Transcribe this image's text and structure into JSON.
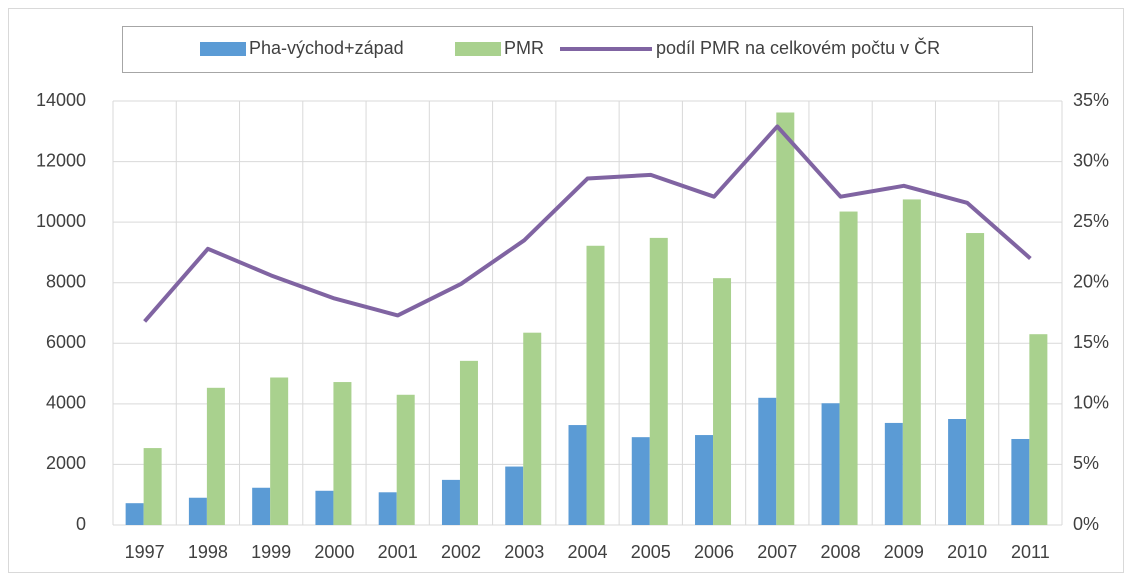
{
  "chart_data": {
    "type": "bar",
    "categories": [
      "1997",
      "1998",
      "1999",
      "2000",
      "2001",
      "2002",
      "2003",
      "2004",
      "2005",
      "2006",
      "2007",
      "2008",
      "2009",
      "2010",
      "2011"
    ],
    "series": [
      {
        "name": "Pha-východ+západ",
        "color": "#5b9bd5",
        "values": [
          720,
          900,
          1230,
          1130,
          1080,
          1490,
          1930,
          3300,
          2900,
          2970,
          4200,
          4020,
          3370,
          3500,
          2840
        ]
      },
      {
        "name": "PMR",
        "color": "#a9d18e",
        "values": [
          2540,
          4530,
          4870,
          4720,
          4300,
          5420,
          6350,
          9220,
          9480,
          8150,
          13620,
          10350,
          10750,
          9640,
          6300
        ]
      },
      {
        "name": "podíl PMR na celkovém počtu v ČR",
        "color": "#8064a2",
        "type": "line",
        "axis": "y2",
        "values": [
          16.8,
          22.8,
          20.6,
          18.7,
          17.3,
          19.9,
          23.5,
          28.6,
          28.9,
          27.1,
          32.9,
          27.1,
          28.0,
          26.6,
          22.0
        ]
      }
    ],
    "ylim": [
      0,
      14000
    ],
    "yticks": [
      0,
      2000,
      4000,
      6000,
      8000,
      10000,
      12000,
      14000
    ],
    "y2lim": [
      0,
      35
    ],
    "y2ticks": [
      {
        "value": 0,
        "label": "0%"
      },
      {
        "value": 5,
        "label": "5%"
      },
      {
        "value": 10,
        "label": "10%"
      },
      {
        "value": 15,
        "label": "15%"
      },
      {
        "value": 20,
        "label": "20%"
      },
      {
        "value": 25,
        "label": "25%"
      },
      {
        "value": 30,
        "label": "30%"
      },
      {
        "value": 35,
        "label": "35%"
      }
    ],
    "grid": true,
    "legend": "top"
  }
}
